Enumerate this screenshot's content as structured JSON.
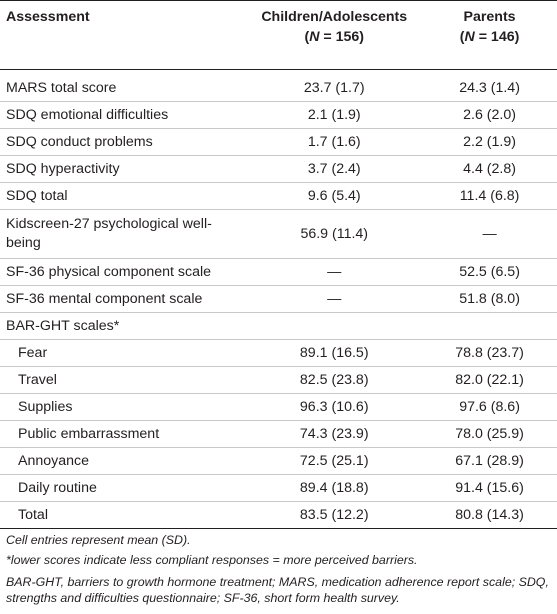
{
  "header": {
    "col1": "Assessment",
    "col2": "Children/Adolescents",
    "col2_n": "(N = 156)",
    "col3": "Parents",
    "col3_n": "(N = 146)"
  },
  "rows": [
    {
      "label": "MARS total score",
      "children": "23.7 (1.7)",
      "parents": "24.3 (1.4)"
    },
    {
      "label": "SDQ emotional difficulties",
      "children": "2.1 (1.9)",
      "parents": "2.6 (2.0)"
    },
    {
      "label": "SDQ conduct problems",
      "children": "1.7 (1.6)",
      "parents": "2.2 (1.9)"
    },
    {
      "label": "SDQ hyperactivity",
      "children": "3.7 (2.4)",
      "parents": "4.4 (2.8)"
    },
    {
      "label": "SDQ total",
      "children": "9.6 (5.4)",
      "parents": "11.4 (6.8)"
    },
    {
      "label": "Kidscreen-27 psychological well-being",
      "children": "56.9 (11.4)",
      "parents": "—"
    },
    {
      "label": "SF-36 physical component scale",
      "children": "—",
      "parents": "52.5 (6.5)"
    },
    {
      "label": "SF-36 mental component scale",
      "children": "—",
      "parents": "51.8 (8.0)"
    },
    {
      "label": "BAR-GHT scales*",
      "children": "",
      "parents": ""
    },
    {
      "label": "Fear",
      "children": "89.1 (16.5)",
      "parents": "78.8 (23.7)"
    },
    {
      "label": "Travel",
      "children": "82.5 (23.8)",
      "parents": "82.0 (22.1)"
    },
    {
      "label": "Supplies",
      "children": "96.3 (10.6)",
      "parents": "97.6 (8.6)"
    },
    {
      "label": "Public embarrassment",
      "children": "74.3 (23.9)",
      "parents": "78.0 (25.9)"
    },
    {
      "label": "Annoyance",
      "children": "72.5 (25.1)",
      "parents": "67.1 (28.9)"
    },
    {
      "label": "Daily routine",
      "children": "89.4 (18.8)",
      "parents": "91.4 (15.6)"
    },
    {
      "label": "Total",
      "children": "83.5 (12.2)",
      "parents": "80.8 (14.3)"
    }
  ],
  "notes": {
    "n1": "Cell entries represent mean (SD).",
    "n2": "*lower scores indicate less compliant responses = more perceived barriers.",
    "n3": "BAR-GHT, barriers to growth hormone treatment; MARS, medication adherence report scale; SDQ, strengths and difficulties questionnaire; SF-36, short form health survey."
  }
}
